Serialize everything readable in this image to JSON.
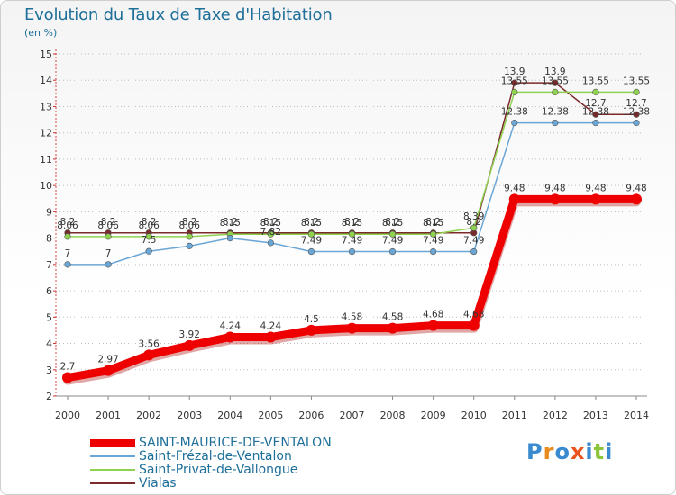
{
  "header": {
    "title": "Evolution du Taux de Taxe d'Habitation",
    "unit": "(en %)"
  },
  "logo": {
    "text": "Proxiti",
    "letters": [
      "P",
      "r",
      "o",
      "x",
      "i",
      "t",
      "i"
    ],
    "colors": [
      "#3a8ad0",
      "#e88a1c",
      "#3a8ad0",
      "#e8541c",
      "#3a8ad0",
      "#8cc43a",
      "#3a8ad0"
    ]
  },
  "chart_data": {
    "type": "line",
    "title": "Evolution du Taux de Taxe d'Habitation",
    "ylabel": "(en %)",
    "xlabel": "",
    "x": [
      "2000",
      "2001",
      "2002",
      "2003",
      "2004",
      "2005",
      "2006",
      "2007",
      "2008",
      "2009",
      "2010",
      "2011",
      "2012",
      "2013",
      "2014"
    ],
    "ylim": [
      2,
      15
    ],
    "yticks": [
      2,
      3,
      4,
      5,
      6,
      7,
      8,
      9,
      10,
      11,
      12,
      13,
      14,
      15
    ],
    "grid": "horizontal dotted",
    "legend": "bottom-left",
    "series": [
      {
        "name": "SAINT-MAURICE-DE-VENTALON",
        "color": "#ee0000",
        "values": [
          2.7,
          2.97,
          3.56,
          3.92,
          4.24,
          4.24,
          4.5,
          4.58,
          4.58,
          4.68,
          4.68,
          9.48,
          9.48,
          9.48,
          9.48
        ],
        "labels": [
          "2.7",
          "2.97",
          "3.56",
          "3.92",
          "4.24",
          "4.24",
          "4.5",
          "4.58",
          "4.58",
          "4.68",
          "4.68",
          "9.48",
          "9.48",
          "9.48",
          "9.48"
        ]
      },
      {
        "name": "Saint-Frézal-de-Ventalon",
        "color": "#6aa6d6",
        "values": [
          7,
          7,
          7.5,
          7.7,
          8,
          7.82,
          7.49,
          7.49,
          7.49,
          7.49,
          7.49,
          12.38,
          12.38,
          12.38,
          12.38
        ],
        "labels": [
          "7",
          "7",
          "7.5",
          "",
          "",
          "7.82",
          "7.49",
          "7.49",
          "7.49",
          "7.49",
          "7.49",
          "12.38",
          "12.38",
          "12.38",
          "12.38"
        ]
      },
      {
        "name": "Saint-Privat-de-Vallongue",
        "color": "#8fd24f",
        "values": [
          8.06,
          8.06,
          8.06,
          8.06,
          8.15,
          8.15,
          8.15,
          8.15,
          8.15,
          8.15,
          8.39,
          13.55,
          13.55,
          13.55,
          13.55
        ],
        "labels": [
          "8.06",
          "8.06",
          "8.06",
          "8.06",
          "8.15",
          "8.15",
          "8.15",
          "8.15",
          "8.15",
          "8.15",
          "8.39",
          "13.55",
          "13.55",
          "13.55",
          "13.55"
        ]
      },
      {
        "name": "Vialas",
        "color": "#7a2a2a",
        "values": [
          8.2,
          8.2,
          8.2,
          8.2,
          8.2,
          8.2,
          8.2,
          8.2,
          8.2,
          8.2,
          8.2,
          13.9,
          13.9,
          12.7,
          12.7
        ],
        "labels": [
          "8.2",
          "8.2",
          "8.2",
          "8.2",
          "8.2",
          "8.2",
          "8.2",
          "8.2",
          "8.2",
          "8.2",
          "8.2",
          "13.9",
          "13.9",
          "12.7",
          "12.7"
        ]
      }
    ]
  }
}
